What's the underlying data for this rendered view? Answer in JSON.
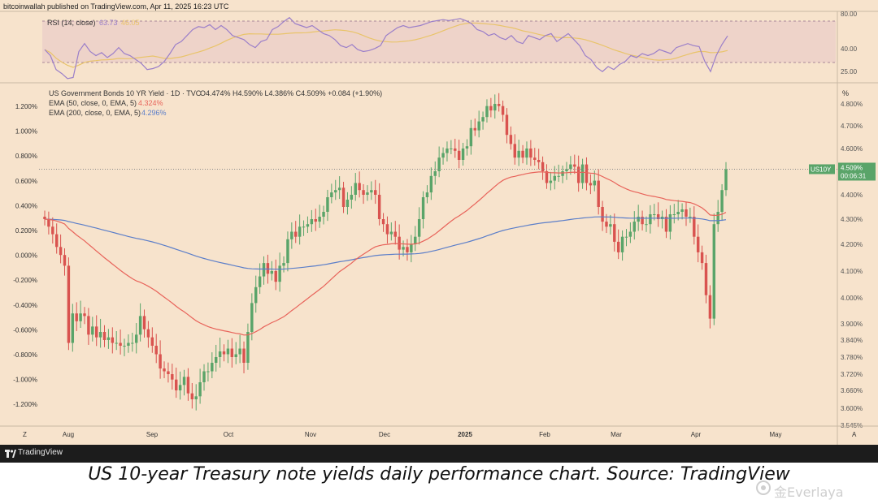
{
  "header": "bitcoinwallah published on TradingView.com, Apr 11, 2025 16:23 UTC",
  "rsi": {
    "label": "RSI (14, close)",
    "value": "63.73",
    "ma_value": "46.05",
    "levels": [
      "80.00",
      "40.00",
      "25.00"
    ],
    "line_color": "#9b7fc9",
    "ma_color": "#e9c46a",
    "series": [
      50,
      44,
      30,
      26,
      21,
      22,
      48,
      56,
      48,
      44,
      47,
      42,
      46,
      52,
      46,
      44,
      40,
      36,
      30,
      31,
      33,
      38,
      46,
      55,
      58,
      64,
      70,
      73,
      72,
      75,
      70,
      74,
      70,
      64,
      62,
      60,
      55,
      52,
      58,
      60,
      70,
      73,
      78,
      82,
      76,
      74,
      72,
      74,
      70,
      66,
      64,
      60,
      54,
      52,
      55,
      50,
      48,
      49,
      51,
      54,
      64,
      68,
      72,
      74,
      72,
      73,
      74,
      76,
      78,
      79,
      80,
      79,
      80,
      81,
      79,
      76,
      70,
      68,
      64,
      66,
      62,
      60,
      64,
      58,
      56,
      64,
      62,
      60,
      64,
      66,
      58,
      62,
      66,
      60,
      54,
      44,
      40,
      32,
      28,
      33,
      30,
      35,
      38,
      44,
      42,
      46,
      44,
      46,
      50,
      48,
      46,
      52,
      54,
      56,
      54,
      53,
      38,
      28,
      44,
      55,
      63.73
    ]
  },
  "main": {
    "legend_title": "US Government Bonds 10 YR Yield · 1D · TVC",
    "ohlc": "O4.474% H4.590% L4.386% C4.509% +0.084 (+1.90%)",
    "ema50_label": "EMA (50, close, 0, EMA, 5)",
    "ema50_value": "4.324%",
    "ema200_label": "EMA (200, close, 0, EMA, 5)",
    "ema200_value": "4.296%",
    "left_axis": [
      "1.200%",
      "1.000%",
      "0.800%",
      "0.600%",
      "0.400%",
      "0.200%",
      "0.000%",
      "-0.200%",
      "-0.400%",
      "-0.600%",
      "-0.800%",
      "-1.000%",
      "-1.200%"
    ],
    "right_axis": [
      "4.800%",
      "4.700%",
      "4.600%",
      "4.500%",
      "4.400%",
      "4.300%",
      "4.200%",
      "4.100%",
      "4.000%",
      "3.900%",
      "3.840%",
      "3.780%",
      "3.720%",
      "3.660%",
      "3.600%",
      "3.545%"
    ],
    "right_axis_unit": "%",
    "price_tag": "US10Y",
    "price_value": "4.509%",
    "countdown": "00:06:31",
    "x_axis": [
      "Aug",
      "Sep",
      "Oct",
      "Nov",
      "Dec",
      "2025",
      "Feb",
      "Mar",
      "Apr",
      "May"
    ],
    "corner_left": "Z",
    "corner_right": "A",
    "colors": {
      "up": "#5aa469",
      "down": "#d9534f",
      "ema50": "#e8635a",
      "ema200": "#5b7ec9",
      "tag": "#5aa469"
    }
  },
  "chart_data": {
    "type": "candlestick",
    "title": "US Government Bonds 10 YR Yield · 1D · TVC",
    "close": [
      4.3,
      4.27,
      4.24,
      4.19,
      4.16,
      4.12,
      3.83,
      3.94,
      3.91,
      3.94,
      3.93,
      3.86,
      3.89,
      3.85,
      3.87,
      3.84,
      3.85,
      3.83,
      3.83,
      3.82,
      3.82,
      3.83,
      3.83,
      3.86,
      3.93,
      3.88,
      3.85,
      3.82,
      3.79,
      3.74,
      3.73,
      3.72,
      3.7,
      3.66,
      3.68,
      3.71,
      3.65,
      3.63,
      3.64,
      3.69,
      3.73,
      3.73,
      3.76,
      3.78,
      3.8,
      3.79,
      3.81,
      3.78,
      3.79,
      3.81,
      3.76,
      3.87,
      3.98,
      4.04,
      4.08,
      4.13,
      4.09,
      4.1,
      4.06,
      4.12,
      4.13,
      4.22,
      4.25,
      4.23,
      4.27,
      4.27,
      4.28,
      4.3,
      4.29,
      4.31,
      4.33,
      4.39,
      4.41,
      4.42,
      4.43,
      4.35,
      4.38,
      4.4,
      4.45,
      4.42,
      4.4,
      4.41,
      4.42,
      4.4,
      4.3,
      4.28,
      4.24,
      4.25,
      4.23,
      4.18,
      4.19,
      4.17,
      4.2,
      4.23,
      4.3,
      4.39,
      4.41,
      4.48,
      4.5,
      4.56,
      4.58,
      4.6,
      4.6,
      4.59,
      4.55,
      4.6,
      4.61,
      4.69,
      4.68,
      4.72,
      4.74,
      4.79,
      4.77,
      4.8,
      4.79,
      4.75,
      4.66,
      4.62,
      4.56,
      4.59,
      4.56,
      4.6,
      4.56,
      4.55,
      4.54,
      4.5,
      4.45,
      4.46,
      4.48,
      4.48,
      4.5,
      4.51,
      4.53,
      4.52,
      4.45,
      4.53,
      4.45,
      4.44,
      4.46,
      4.35,
      4.29,
      4.27,
      4.28,
      4.21,
      4.17,
      4.23,
      4.23,
      4.25,
      4.29,
      4.31,
      4.28,
      4.28,
      4.32,
      4.32,
      4.3,
      4.31,
      4.25,
      4.32,
      4.32,
      4.33,
      4.34,
      4.31,
      4.31,
      4.23,
      4.17,
      4.13,
      4.01,
      3.92,
      4.28,
      4.33,
      4.42,
      4.509
    ],
    "ema50_last": 4.324,
    "ema200_last": 4.296,
    "rsi_last": 63.73,
    "x_labels": [
      "Aug",
      "Sep",
      "Oct",
      "Nov",
      "Dec",
      "2025",
      "Feb",
      "Mar",
      "Apr",
      "May"
    ],
    "ylim_right": [
      3.545,
      4.8
    ],
    "ylabel_right": "%"
  }
}
